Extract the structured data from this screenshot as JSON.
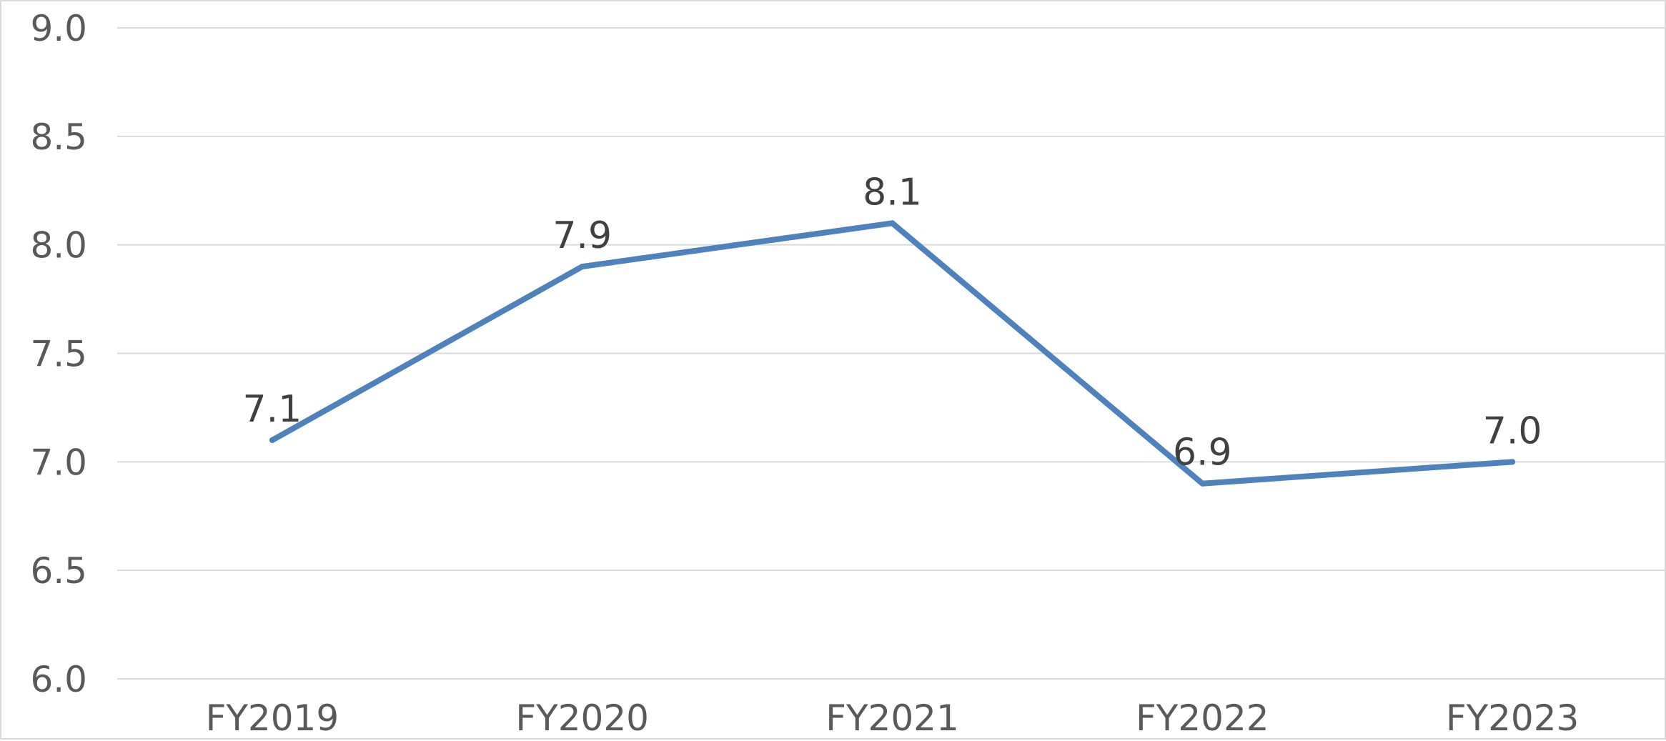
{
  "chart_data": {
    "type": "line",
    "categories": [
      "FY2019",
      "FY2020",
      "FY2021",
      "FY2022",
      "FY2023"
    ],
    "series": [
      {
        "values": [
          7.1,
          7.9,
          8.1,
          6.9,
          7.0
        ],
        "color": "#4f81bd"
      }
    ],
    "data_labels": [
      "7.1",
      "7.9",
      "8.1",
      "6.9",
      "7.0"
    ],
    "ylim": [
      6.0,
      9.0
    ],
    "yticks": [
      "6.0",
      "6.5",
      "7.0",
      "7.5",
      "8.0",
      "8.5",
      "9.0"
    ],
    "grid": true,
    "legend": "none"
  }
}
